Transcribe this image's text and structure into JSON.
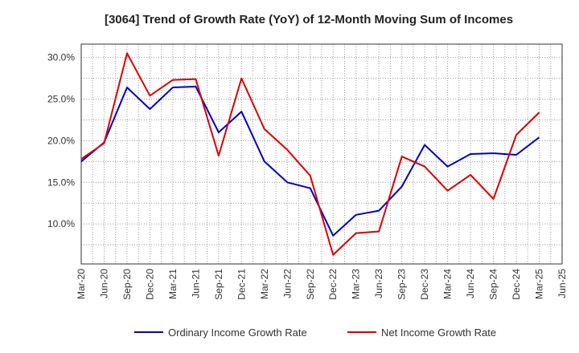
{
  "chart_data": {
    "type": "line",
    "title": "[3064]  Trend of Growth Rate (YoY) of 12-Month Moving Sum of Incomes",
    "xlabel": "",
    "ylabel": "",
    "categories": [
      "Mar-20",
      "Jun-20",
      "Sep-20",
      "Dec-20",
      "Mar-21",
      "Jun-21",
      "Sep-21",
      "Dec-21",
      "Mar-22",
      "Jun-22",
      "Sep-22",
      "Dec-22",
      "Mar-23",
      "Jun-23",
      "Sep-23",
      "Dec-23",
      "Mar-24",
      "Jun-24",
      "Sep-24",
      "Dec-24",
      "Mar-25",
      "Jun-25"
    ],
    "y_ticks": [
      10.0,
      15.0,
      20.0,
      25.0,
      30.0
    ],
    "y_tick_labels": [
      "10.0%",
      "15.0%",
      "20.0%",
      "25.0%",
      "30.0%"
    ],
    "ylim": [
      5.2,
      31.6
    ],
    "grid": true,
    "legend_position": "bottom",
    "series": [
      {
        "name": "Ordinary Income Growth Rate",
        "color": "#0000cc",
        "values": [
          17.5,
          19.8,
          26.4,
          23.8,
          26.4,
          26.5,
          21.0,
          23.5,
          17.5,
          15.0,
          14.3,
          8.6,
          11.1,
          11.6,
          14.5,
          19.5,
          16.9,
          18.4,
          18.5,
          18.3,
          20.4,
          null
        ]
      },
      {
        "name": "Net Income Growth Rate",
        "color": "#dd0000",
        "values": [
          17.8,
          19.7,
          30.5,
          25.4,
          27.3,
          27.4,
          18.2,
          27.5,
          21.4,
          18.9,
          15.8,
          6.3,
          8.9,
          9.1,
          18.1,
          16.9,
          14.0,
          15.9,
          13.0,
          20.7,
          23.4,
          null
        ]
      }
    ]
  }
}
